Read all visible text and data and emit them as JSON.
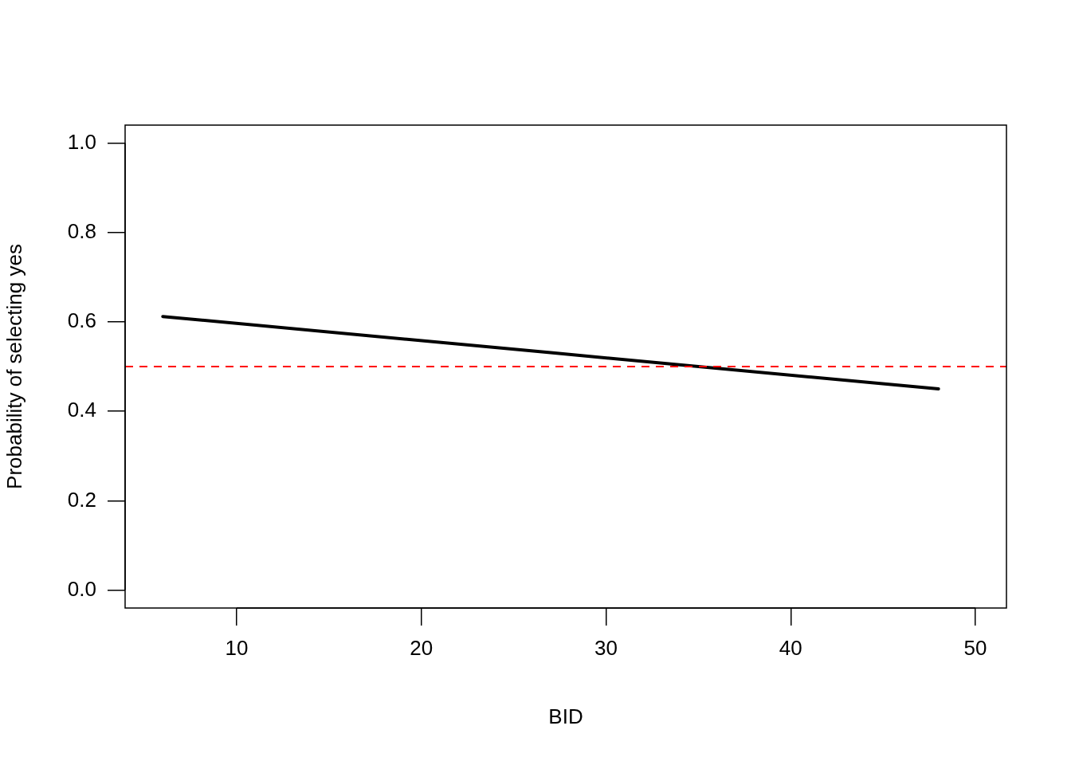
{
  "chart_data": {
    "type": "line",
    "xlabel": "BID",
    "ylabel": "Probability of selecting yes",
    "x": [
      6,
      27,
      48
    ],
    "series": [
      {
        "color": "#000000",
        "values": [
          0.612,
          0.531,
          0.45
        ]
      }
    ],
    "xlim": [
      3.96,
      51.68
    ],
    "xticks": [
      10,
      20,
      30,
      40,
      50
    ],
    "ylim": [
      -0.04,
      1.04
    ],
    "yticks": [
      {
        "value": 0,
        "label": "0.0"
      },
      {
        "value": 0.2,
        "label": "0.2"
      },
      {
        "value": 0.4,
        "label": "0.4"
      },
      {
        "value": 0.6,
        "label": "0.6"
      },
      {
        "value": 0.8,
        "label": "0.8"
      },
      {
        "value": 1,
        "label": "1.0"
      }
    ],
    "ref_lines": [
      {
        "axis": "y",
        "value": 0.5,
        "color": "#ff0000",
        "line_style": "dashed"
      }
    ],
    "grid": false,
    "legend": false,
    "marker": "none",
    "line_style": "solid"
  }
}
